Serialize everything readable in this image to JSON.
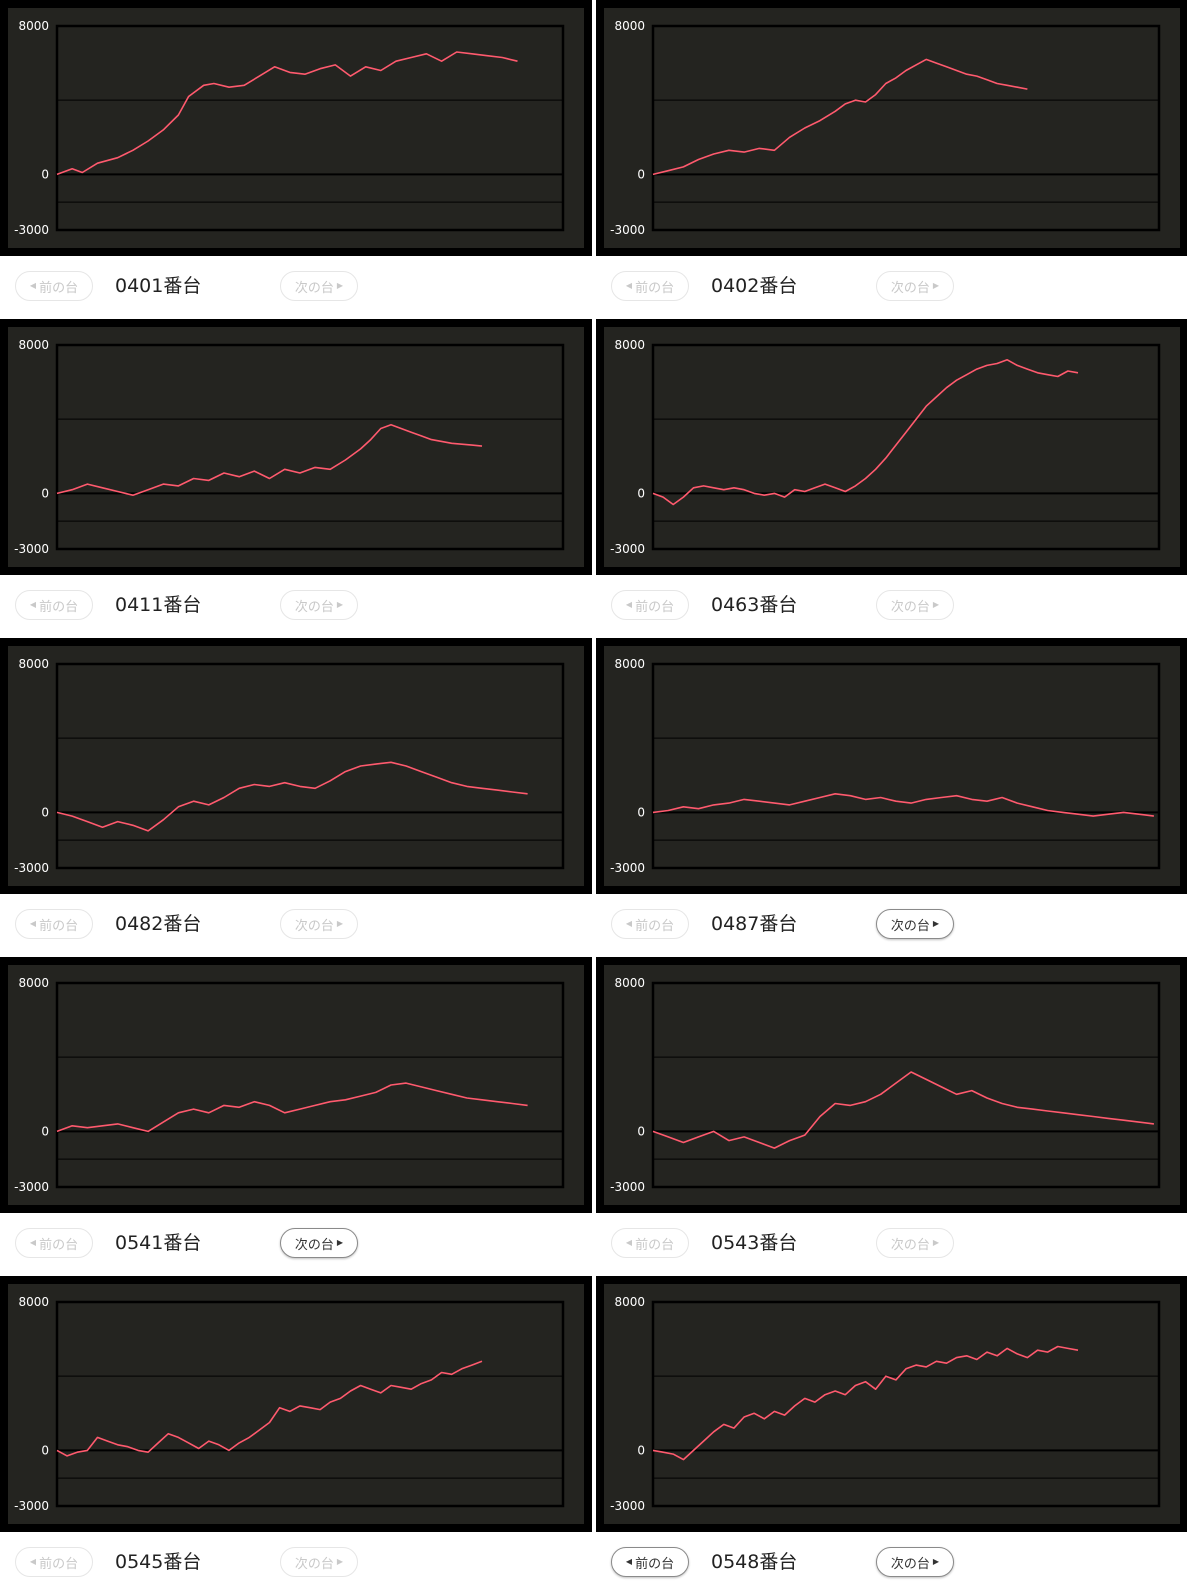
{
  "prev_label": "前の台",
  "next_label": "次の台",
  "y_ticks": [
    8000,
    0,
    -3000
  ],
  "colors": {
    "panel_bg": "#242420",
    "line": "#ff5a6e",
    "grid": "#000000"
  },
  "charts": [
    {
      "machine": "0401番台",
      "prev_active": false,
      "next_active": false,
      "chart_data": {
        "type": "line",
        "ylim": [
          -3000,
          8000
        ],
        "xlim": [
          0,
          100
        ],
        "x": [
          0,
          3,
          5,
          8,
          12,
          15,
          18,
          21,
          24,
          26,
          29,
          31,
          34,
          37,
          40,
          43,
          46,
          49,
          52,
          55,
          58,
          61,
          64,
          67,
          70,
          73,
          76,
          79,
          82,
          85,
          88,
          91
        ],
        "values": [
          0,
          300,
          100,
          600,
          900,
          1300,
          1800,
          2400,
          3200,
          4200,
          4800,
          4900,
          4700,
          4800,
          5300,
          5800,
          5500,
          5400,
          5700,
          5900,
          5300,
          5800,
          5600,
          6100,
          6300,
          6500,
          6100,
          6600,
          6500,
          6400,
          6300,
          6100
        ]
      }
    },
    {
      "machine": "0402番台",
      "prev_active": false,
      "next_active": false,
      "chart_data": {
        "type": "line",
        "ylim": [
          -3000,
          8000
        ],
        "xlim": [
          0,
          100
        ],
        "x": [
          0,
          3,
          6,
          9,
          12,
          15,
          18,
          21,
          24,
          27,
          30,
          33,
          36,
          38,
          40,
          42,
          44,
          46,
          48,
          50,
          52,
          54,
          56,
          58,
          60,
          62,
          64,
          66,
          68,
          70,
          72,
          74
        ],
        "values": [
          0,
          200,
          400,
          800,
          1100,
          1300,
          1200,
          1400,
          1300,
          2000,
          2500,
          2900,
          3400,
          3800,
          4000,
          3900,
          4300,
          4900,
          5200,
          5600,
          5900,
          6200,
          6000,
          5800,
          5600,
          5400,
          5300,
          5100,
          4900,
          4800,
          4700,
          4600
        ]
      }
    },
    {
      "machine": "0411番台",
      "prev_active": false,
      "next_active": false,
      "chart_data": {
        "type": "line",
        "ylim": [
          -3000,
          8000
        ],
        "xlim": [
          0,
          100
        ],
        "x": [
          0,
          3,
          6,
          9,
          12,
          15,
          18,
          21,
          24,
          27,
          30,
          33,
          36,
          39,
          42,
          45,
          48,
          51,
          54,
          57,
          60,
          62,
          64,
          66,
          68,
          70,
          72,
          74,
          76,
          78,
          80,
          82,
          84
        ],
        "values": [
          0,
          200,
          500,
          300,
          100,
          -100,
          200,
          500,
          400,
          800,
          700,
          1100,
          900,
          1200,
          800,
          1300,
          1100,
          1400,
          1300,
          1800,
          2400,
          2900,
          3500,
          3700,
          3500,
          3300,
          3100,
          2900,
          2800,
          2700,
          2650,
          2600,
          2550
        ]
      }
    },
    {
      "machine": "0463番台",
      "prev_active": false,
      "next_active": false,
      "chart_data": {
        "type": "line",
        "ylim": [
          -3000,
          8000
        ],
        "xlim": [
          0,
          100
        ],
        "x": [
          0,
          2,
          4,
          6,
          8,
          10,
          12,
          14,
          16,
          18,
          20,
          22,
          24,
          26,
          28,
          30,
          32,
          34,
          36,
          38,
          40,
          42,
          44,
          46,
          48,
          50,
          52,
          54,
          56,
          58,
          60,
          62,
          64,
          66,
          68,
          70,
          72,
          74,
          76,
          78,
          80,
          82,
          84
        ],
        "values": [
          0,
          -200,
          -600,
          -200,
          300,
          400,
          300,
          200,
          300,
          200,
          0,
          -100,
          0,
          -200,
          200,
          100,
          300,
          500,
          300,
          100,
          400,
          800,
          1300,
          1900,
          2600,
          3300,
          4000,
          4700,
          5200,
          5700,
          6100,
          6400,
          6700,
          6900,
          7000,
          7200,
          6900,
          6700,
          6500,
          6400,
          6300,
          6600,
          6500
        ]
      }
    },
    {
      "machine": "0482番台",
      "prev_active": false,
      "next_active": false,
      "chart_data": {
        "type": "line",
        "ylim": [
          -3000,
          8000
        ],
        "xlim": [
          0,
          100
        ],
        "x": [
          0,
          3,
          6,
          9,
          12,
          15,
          18,
          21,
          24,
          27,
          30,
          33,
          36,
          39,
          42,
          45,
          48,
          51,
          54,
          57,
          60,
          63,
          66,
          69,
          72,
          75,
          78,
          81,
          84,
          87,
          90,
          93
        ],
        "values": [
          0,
          -200,
          -500,
          -800,
          -500,
          -700,
          -1000,
          -400,
          300,
          600,
          400,
          800,
          1300,
          1500,
          1400,
          1600,
          1400,
          1300,
          1700,
          2200,
          2500,
          2600,
          2700,
          2500,
          2200,
          1900,
          1600,
          1400,
          1300,
          1200,
          1100,
          1000
        ]
      }
    },
    {
      "machine": "0487番台",
      "prev_active": false,
      "next_active": true,
      "chart_data": {
        "type": "line",
        "ylim": [
          -3000,
          8000
        ],
        "xlim": [
          0,
          100
        ],
        "x": [
          0,
          3,
          6,
          9,
          12,
          15,
          18,
          21,
          24,
          27,
          30,
          33,
          36,
          39,
          42,
          45,
          48,
          51,
          54,
          57,
          60,
          63,
          66,
          69,
          72,
          75,
          78,
          81,
          84,
          87,
          90,
          93,
          96,
          99
        ],
        "values": [
          0,
          100,
          300,
          200,
          400,
          500,
          700,
          600,
          500,
          400,
          600,
          800,
          1000,
          900,
          700,
          800,
          600,
          500,
          700,
          800,
          900,
          700,
          600,
          800,
          500,
          300,
          100,
          0,
          -100,
          -200,
          -100,
          0,
          -100,
          -200
        ]
      }
    },
    {
      "machine": "0541番台",
      "prev_active": false,
      "next_active": true,
      "chart_data": {
        "type": "line",
        "ylim": [
          -3000,
          8000
        ],
        "xlim": [
          0,
          100
        ],
        "x": [
          0,
          3,
          6,
          9,
          12,
          15,
          18,
          21,
          24,
          27,
          30,
          33,
          36,
          39,
          42,
          45,
          48,
          51,
          54,
          57,
          60,
          63,
          66,
          69,
          72,
          75,
          78,
          81,
          84,
          87,
          90,
          93
        ],
        "values": [
          0,
          300,
          200,
          300,
          400,
          200,
          0,
          500,
          1000,
          1200,
          1000,
          1400,
          1300,
          1600,
          1400,
          1000,
          1200,
          1400,
          1600,
          1700,
          1900,
          2100,
          2500,
          2600,
          2400,
          2200,
          2000,
          1800,
          1700,
          1600,
          1500,
          1400
        ]
      }
    },
    {
      "machine": "0543番台",
      "prev_active": false,
      "next_active": false,
      "chart_data": {
        "type": "line",
        "ylim": [
          -3000,
          8000
        ],
        "xlim": [
          0,
          100
        ],
        "x": [
          0,
          3,
          6,
          9,
          12,
          15,
          18,
          21,
          24,
          27,
          30,
          33,
          36,
          39,
          42,
          45,
          48,
          51,
          54,
          57,
          60,
          63,
          66,
          69,
          72,
          75,
          78,
          81,
          84,
          87,
          90,
          93,
          96,
          99
        ],
        "values": [
          0,
          -300,
          -600,
          -300,
          0,
          -500,
          -300,
          -600,
          -900,
          -500,
          -200,
          800,
          1500,
          1400,
          1600,
          2000,
          2600,
          3200,
          2800,
          2400,
          2000,
          2200,
          1800,
          1500,
          1300,
          1200,
          1100,
          1000,
          900,
          800,
          700,
          600,
          500,
          400
        ]
      }
    },
    {
      "machine": "0545番台",
      "prev_active": false,
      "next_active": false,
      "chart_data": {
        "type": "line",
        "ylim": [
          -3000,
          8000
        ],
        "xlim": [
          0,
          100
        ],
        "x": [
          0,
          2,
          4,
          6,
          8,
          10,
          12,
          14,
          16,
          18,
          20,
          22,
          24,
          26,
          28,
          30,
          32,
          34,
          36,
          38,
          40,
          42,
          44,
          46,
          48,
          50,
          52,
          54,
          56,
          58,
          60,
          62,
          64,
          66,
          68,
          70,
          72,
          74,
          76,
          78,
          80,
          82,
          84
        ],
        "values": [
          0,
          -300,
          -100,
          0,
          700,
          500,
          300,
          200,
          0,
          -100,
          400,
          900,
          700,
          400,
          100,
          500,
          300,
          0,
          400,
          700,
          1100,
          1500,
          2300,
          2100,
          2400,
          2300,
          2200,
          2600,
          2800,
          3200,
          3500,
          3300,
          3100,
          3500,
          3400,
          3300,
          3600,
          3800,
          4200,
          4100,
          4400,
          4600,
          4800
        ]
      }
    },
    {
      "machine": "0548番台",
      "prev_active": true,
      "next_active": true,
      "chart_data": {
        "type": "line",
        "ylim": [
          -3000,
          8000
        ],
        "xlim": [
          0,
          100
        ],
        "x": [
          0,
          2,
          4,
          6,
          8,
          10,
          12,
          14,
          16,
          18,
          20,
          22,
          24,
          26,
          28,
          30,
          32,
          34,
          36,
          38,
          40,
          42,
          44,
          46,
          48,
          50,
          52,
          54,
          56,
          58,
          60,
          62,
          64,
          66,
          68,
          70,
          72,
          74,
          76,
          78,
          80,
          82,
          84
        ],
        "values": [
          0,
          -100,
          -200,
          -500,
          0,
          500,
          1000,
          1400,
          1200,
          1800,
          2000,
          1700,
          2100,
          1900,
          2400,
          2800,
          2600,
          3000,
          3200,
          3000,
          3500,
          3700,
          3300,
          4000,
          3800,
          4400,
          4600,
          4500,
          4800,
          4700,
          5000,
          5100,
          4900,
          5300,
          5100,
          5500,
          5200,
          5000,
          5400,
          5300,
          5600,
          5500,
          5400
        ]
      }
    }
  ]
}
